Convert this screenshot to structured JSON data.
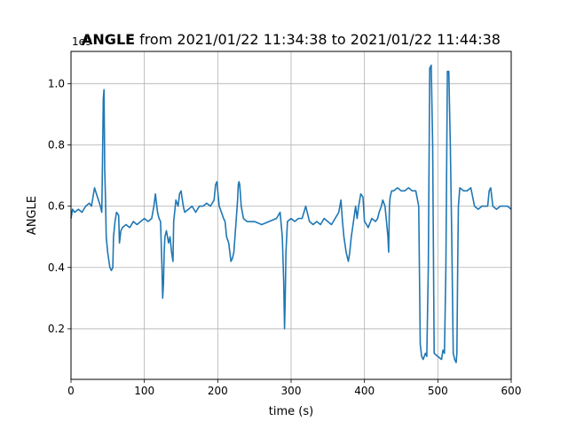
{
  "chart_data": {
    "type": "line",
    "title_bold": "ANGLE",
    "title_rest": "from 2021/01/22 11:34:38 to 2021/01/22 11:44:38",
    "xlabel": "time (s)",
    "ylabel": "ANGLE",
    "offset_label": "1e9",
    "xlim": [
      0,
      600
    ],
    "ylim": [
      0.035,
      1.105
    ],
    "xticks": [
      0,
      100,
      200,
      300,
      400,
      500,
      600
    ],
    "xtick_labels": [
      "0",
      "100",
      "200",
      "300",
      "400",
      "500",
      "600"
    ],
    "yticks": [
      0.2,
      0.4,
      0.6,
      0.8,
      1.0
    ],
    "ytick_labels": [
      "0.2",
      "0.4",
      "0.6",
      "0.8",
      "1.0"
    ],
    "grid": true,
    "line_color": "#1f77b4",
    "series": [
      {
        "x": [
          0,
          2,
          5,
          10,
          15,
          20,
          25,
          28,
          32,
          36,
          40,
          42,
          43,
          44,
          45,
          46,
          47,
          48,
          50,
          53,
          55,
          57,
          58,
          60,
          62,
          65,
          66,
          68,
          70,
          75,
          80,
          85,
          90,
          95,
          100,
          105,
          110,
          113,
          115,
          118,
          120,
          122,
          124,
          125,
          126,
          127,
          128,
          130,
          133,
          135,
          137,
          139,
          140,
          143,
          146,
          148,
          150,
          153,
          155,
          160,
          165,
          170,
          175,
          180,
          185,
          190,
          195,
          197,
          199,
          200,
          202,
          205,
          208,
          210,
          212,
          215,
          218,
          220,
          222,
          225,
          227,
          228,
          229,
          230,
          232,
          235,
          240,
          250,
          260,
          270,
          280,
          285,
          288,
          290,
          291,
          292,
          293,
          295,
          300,
          305,
          310,
          315,
          320,
          325,
          330,
          335,
          340,
          345,
          350,
          355,
          360,
          365,
          368,
          370,
          372,
          375,
          378,
          380,
          382,
          385,
          388,
          390,
          392,
          395,
          398,
          400,
          403,
          405,
          410,
          415,
          418,
          420,
          423,
          425,
          428,
          430,
          432,
          433,
          434,
          435,
          437,
          440,
          445,
          450,
          455,
          460,
          465,
          470,
          474,
          476,
          478,
          480,
          483,
          485,
          487,
          489,
          491,
          493,
          495,
          500,
          505,
          507,
          509,
          511,
          513,
          515,
          517,
          519,
          521,
          523,
          525,
          526,
          527,
          528,
          530,
          535,
          540,
          545,
          550,
          555,
          560,
          565,
          568,
          570,
          572,
          575,
          580,
          585,
          590,
          595,
          600
        ],
        "values": [
          0.56,
          0.59,
          0.58,
          0.59,
          0.58,
          0.6,
          0.61,
          0.6,
          0.66,
          0.63,
          0.6,
          0.58,
          0.75,
          0.95,
          0.98,
          0.72,
          0.62,
          0.5,
          0.45,
          0.4,
          0.39,
          0.4,
          0.5,
          0.55,
          0.58,
          0.57,
          0.48,
          0.52,
          0.53,
          0.54,
          0.53,
          0.55,
          0.54,
          0.55,
          0.56,
          0.55,
          0.56,
          0.6,
          0.64,
          0.58,
          0.56,
          0.55,
          0.4,
          0.3,
          0.35,
          0.45,
          0.5,
          0.52,
          0.48,
          0.5,
          0.45,
          0.42,
          0.55,
          0.62,
          0.6,
          0.64,
          0.65,
          0.6,
          0.58,
          0.59,
          0.6,
          0.58,
          0.6,
          0.6,
          0.61,
          0.6,
          0.62,
          0.67,
          0.68,
          0.65,
          0.6,
          0.58,
          0.56,
          0.55,
          0.5,
          0.48,
          0.42,
          0.43,
          0.45,
          0.55,
          0.62,
          0.67,
          0.68,
          0.67,
          0.6,
          0.56,
          0.55,
          0.55,
          0.54,
          0.55,
          0.56,
          0.58,
          0.5,
          0.35,
          0.2,
          0.3,
          0.45,
          0.55,
          0.56,
          0.55,
          0.56,
          0.56,
          0.6,
          0.55,
          0.54,
          0.55,
          0.54,
          0.56,
          0.55,
          0.54,
          0.56,
          0.58,
          0.62,
          0.55,
          0.5,
          0.45,
          0.42,
          0.45,
          0.5,
          0.55,
          0.6,
          0.56,
          0.6,
          0.64,
          0.63,
          0.55,
          0.54,
          0.53,
          0.56,
          0.55,
          0.56,
          0.58,
          0.6,
          0.62,
          0.6,
          0.55,
          0.5,
          0.45,
          0.6,
          0.63,
          0.65,
          0.65,
          0.66,
          0.65,
          0.65,
          0.66,
          0.65,
          0.65,
          0.6,
          0.15,
          0.11,
          0.1,
          0.12,
          0.11,
          0.4,
          1.05,
          1.06,
          0.8,
          0.12,
          0.11,
          0.1,
          0.13,
          0.12,
          0.4,
          1.04,
          1.04,
          0.8,
          0.5,
          0.12,
          0.1,
          0.09,
          0.12,
          0.4,
          0.6,
          0.66,
          0.65,
          0.65,
          0.66,
          0.6,
          0.59,
          0.6,
          0.6,
          0.6,
          0.65,
          0.66,
          0.6,
          0.59,
          0.6,
          0.6,
          0.6,
          0.59
        ]
      }
    ]
  }
}
